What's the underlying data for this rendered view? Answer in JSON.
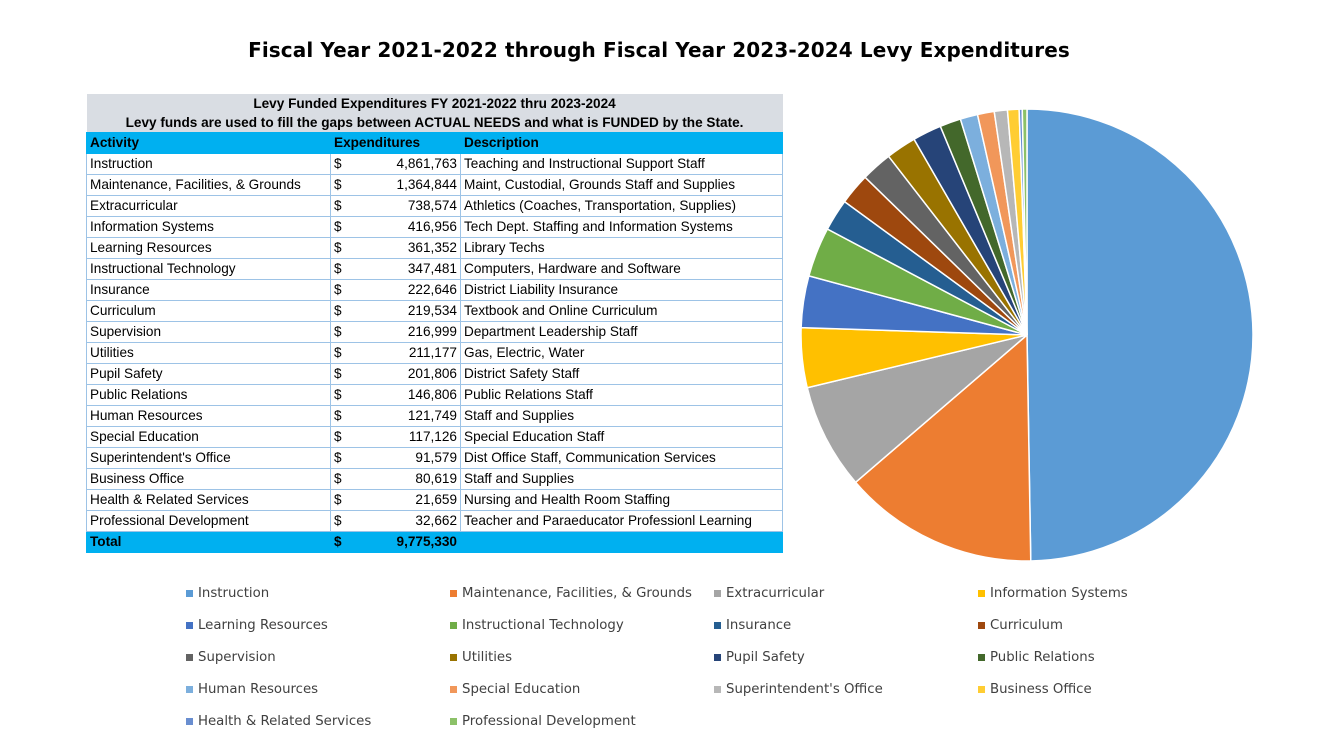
{
  "title": "Fiscal Year 2021-2022 through Fiscal Year 2023-2024 Levy Expenditures",
  "table": {
    "title1": "Levy Funded Expenditures FY 2021-2022 thru 2023-2024",
    "title2": "Levy funds are used to fill the gaps between ACTUAL NEEDS and what is FUNDED by the State.",
    "col_activity": "Activity",
    "col_expenditures": "Expenditures",
    "col_description": "Description",
    "currency": "$",
    "rows": [
      {
        "activity": "Instruction",
        "amount": "4,861,763",
        "description": "Teaching and Instructional Support Staff"
      },
      {
        "activity": "Maintenance, Facilities, & Grounds",
        "amount": "1,364,844",
        "description": "Maint, Custodial, Grounds Staff and Supplies"
      },
      {
        "activity": "Extracurricular",
        "amount": "738,574",
        "description": "Athletics (Coaches, Transportation, Supplies)"
      },
      {
        "activity": "Information Systems",
        "amount": "416,956",
        "description": "Tech Dept. Staffing and Information Systems"
      },
      {
        "activity": "Learning Resources",
        "amount": "361,352",
        "description": "Library Techs"
      },
      {
        "activity": "Instructional Technology",
        "amount": "347,481",
        "description": "Computers, Hardware and Software"
      },
      {
        "activity": "Insurance",
        "amount": "222,646",
        "description": "District Liability Insurance"
      },
      {
        "activity": "Curriculum",
        "amount": "219,534",
        "description": "Textbook and Online Curriculum"
      },
      {
        "activity": "Supervision",
        "amount": "216,999",
        "description": "Department Leadership Staff"
      },
      {
        "activity": "Utilities",
        "amount": "211,177",
        "description": "Gas, Electric, Water"
      },
      {
        "activity": "Pupil Safety",
        "amount": "201,806",
        "description": "District Safety Staff"
      },
      {
        "activity": "Public Relations",
        "amount": "146,806",
        "description": "Public Relations Staff"
      },
      {
        "activity": "Human Resources",
        "amount": "121,749",
        "description": "Staff and Supplies"
      },
      {
        "activity": "Special Education",
        "amount": "117,126",
        "description": "Special Education Staff"
      },
      {
        "activity": "Superintendent's Office",
        "amount": "91,579",
        "description": "Dist Office Staff, Communication Services"
      },
      {
        "activity": "Business Office",
        "amount": "80,619",
        "description": "Staff and Supplies"
      },
      {
        "activity": "Health & Related Services",
        "amount": "21,659",
        "description": "Nursing and Health Room Staffing"
      },
      {
        "activity": "Professional Development",
        "amount": "32,662",
        "description": "Teacher and Paraeducator Professionl Learning"
      }
    ],
    "total_label": "Total",
    "total_amount": "9,775,330"
  },
  "chart_data": {
    "type": "pie",
    "categories": [
      "Instruction",
      "Maintenance, Facilities, & Grounds",
      "Extracurricular",
      "Information Systems",
      "Learning Resources",
      "Instructional Technology",
      "Insurance",
      "Curriculum",
      "Supervision",
      "Utilities",
      "Pupil Safety",
      "Public Relations",
      "Human Resources",
      "Special Education",
      "Superintendent's Office",
      "Business Office",
      "Health & Related Services",
      "Professional Development"
    ],
    "values": [
      4861763,
      1364844,
      738574,
      416956,
      361352,
      347481,
      222646,
      219534,
      216999,
      211177,
      201806,
      146806,
      121749,
      117126,
      91579,
      80619,
      21659,
      32662
    ],
    "colors": [
      "#5b9bd5",
      "#ed7d31",
      "#a5a5a5",
      "#ffc000",
      "#4472c4",
      "#70ad47",
      "#255e91",
      "#9e480e",
      "#636363",
      "#997300",
      "#264478",
      "#43682b",
      "#7cafdd",
      "#f1975a",
      "#b7b7b7",
      "#ffcd33",
      "#698ed0",
      "#8cc168"
    ],
    "legend_position": "bottom"
  }
}
